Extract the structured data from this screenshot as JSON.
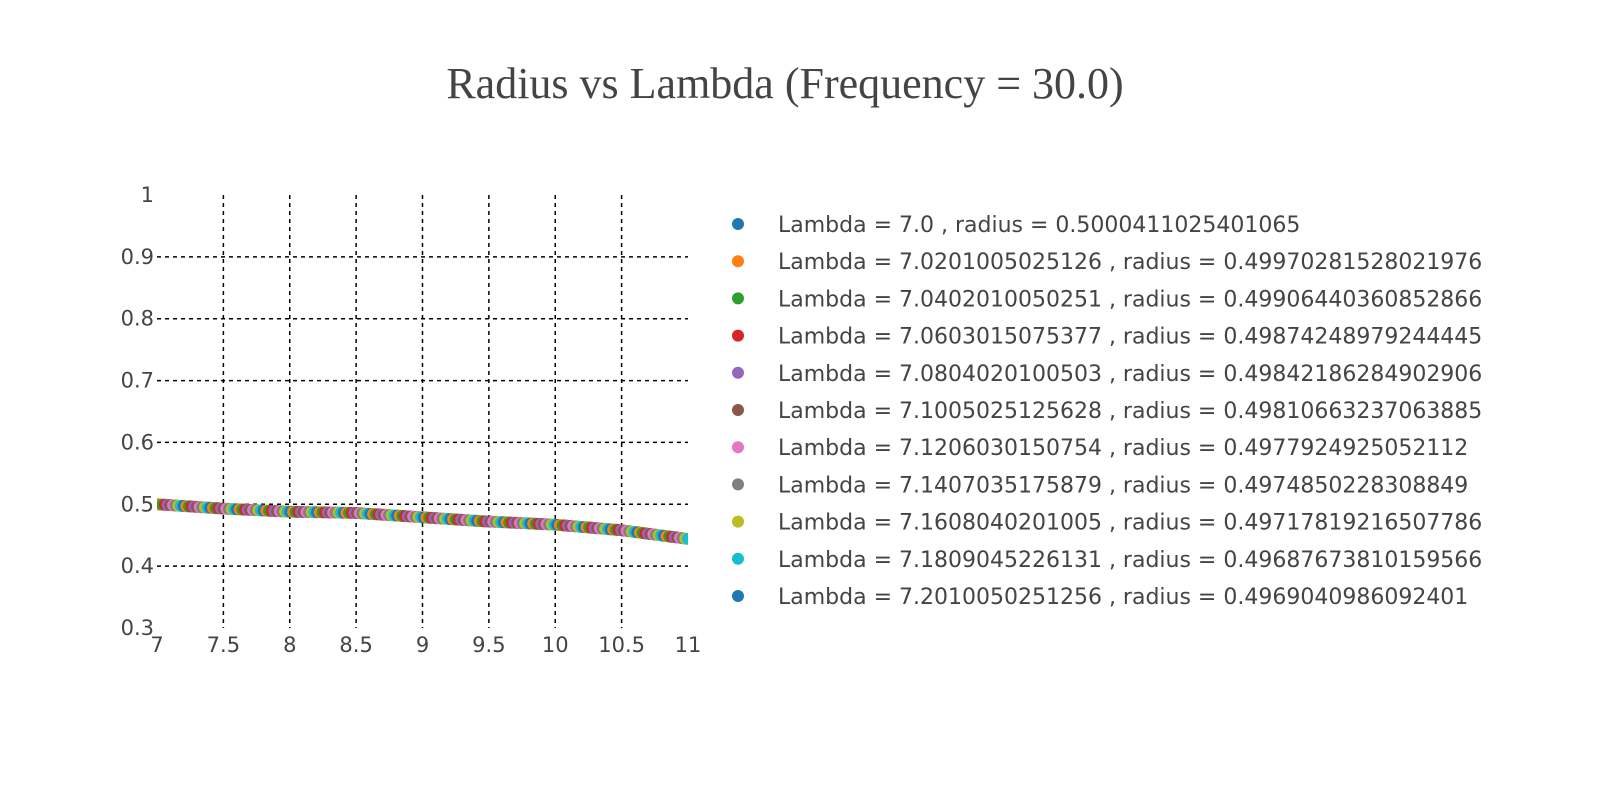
{
  "chart_data": {
    "type": "scatter",
    "title": "Radius vs Lambda (Frequency = 30.0)",
    "xlabel": "",
    "ylabel": "",
    "xlim": [
      7,
      11
    ],
    "ylim": [
      0.3,
      1
    ],
    "x_ticks": [
      "7",
      "7.5",
      "8",
      "8.5",
      "9",
      "9.5",
      "10",
      "10.5",
      "11"
    ],
    "y_ticks": [
      "0.3",
      "0.4",
      "0.5",
      "0.6",
      "0.7",
      "0.8",
      "0.9",
      "1"
    ],
    "grid": true,
    "legend_position": "right",
    "palette": [
      "#1f77b4",
      "#ff7f0e",
      "#2ca02c",
      "#d62728",
      "#9467bd",
      "#8c564b",
      "#e377c2",
      "#7f7f7f",
      "#bcbd22",
      "#17becf"
    ],
    "curve": {
      "x": [
        7.0,
        7.5,
        8.0,
        8.5,
        9.0,
        9.5,
        10.0,
        10.5,
        11.0
      ],
      "y": [
        0.5,
        0.493,
        0.488,
        0.486,
        0.479,
        0.472,
        0.467,
        0.458,
        0.444
      ]
    },
    "series": [
      {
        "name": "Lambda = 7.0 , radius = 0.5000411025401065",
        "x": 7.0,
        "y": 0.5000411025401065
      },
      {
        "name": "Lambda = 7.0201005025126 , radius = 0.49970281528021976",
        "x": 7.0201005025126,
        "y": 0.49970281528021976
      },
      {
        "name": "Lambda = 7.0402010050251 , radius = 0.49906440360852866",
        "x": 7.0402010050251,
        "y": 0.49906440360852866
      },
      {
        "name": "Lambda = 7.0603015075377 , radius = 0.49874248979244445",
        "x": 7.0603015075377,
        "y": 0.49874248979244445
      },
      {
        "name": "Lambda = 7.0804020100503 , radius = 0.49842186284902906",
        "x": 7.0804020100503,
        "y": 0.49842186284902906
      },
      {
        "name": "Lambda = 7.1005025125628 , radius = 0.49810663237063885",
        "x": 7.1005025125628,
        "y": 0.49810663237063885
      },
      {
        "name": "Lambda = 7.1206030150754 , radius = 0.4977924925052112",
        "x": 7.1206030150754,
        "y": 0.4977924925052112
      },
      {
        "name": "Lambda = 7.1407035175879 , radius = 0.4974850228308849",
        "x": 7.1407035175879,
        "y": 0.4974850228308849
      },
      {
        "name": "Lambda = 7.1608040201005 , radius = 0.49717819216507786",
        "x": 7.1608040201005,
        "y": 0.49717819216507786
      },
      {
        "name": "Lambda = 7.1809045226131 , radius = 0.49687673810159566",
        "x": 7.1809045226131,
        "y": 0.49687673810159566
      },
      {
        "name": "Lambda = 7.2010050251256 , radius = 0.4969040986092401",
        "x": 7.2010050251256,
        "y": 0.4969040986092401
      }
    ]
  }
}
